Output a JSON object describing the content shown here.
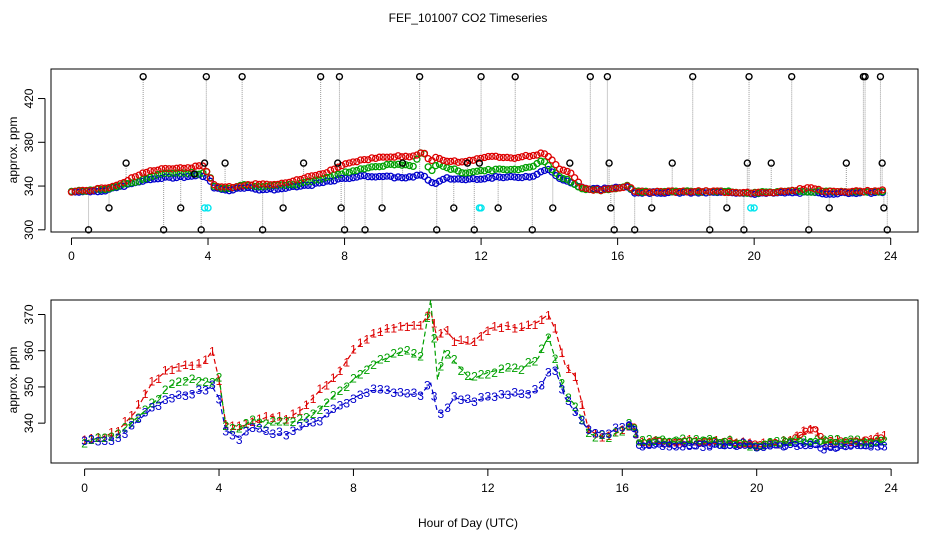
{
  "chart_data": [
    {
      "type": "scatter",
      "title": "FEF_101007  CO2 Timeseries",
      "xlabel": "",
      "ylabel": "approx. ppm",
      "xlim": [
        -0.6,
        24.8
      ],
      "ylim": [
        298,
        447
      ],
      "xticks": [
        0,
        4,
        8,
        12,
        16,
        20,
        24
      ],
      "xtick_labels": [
        "0",
        "4",
        "8",
        "12",
        "16",
        "20",
        "24"
      ],
      "yticks": [
        300,
        340,
        380,
        420
      ],
      "ytick_labels": [
        "300",
        "340",
        "380",
        "420"
      ],
      "spike_series": {
        "name": "flag extremes",
        "color": "#000000",
        "points": [
          [
            0.5,
            300
          ],
          [
            1.1,
            320
          ],
          [
            1.6,
            361
          ],
          [
            2.1,
            440
          ],
          [
            2.7,
            300
          ],
          [
            3.2,
            320
          ],
          [
            3.6,
            351
          ],
          [
            3.8,
            300
          ],
          [
            3.9,
            361
          ],
          [
            3.95,
            440
          ],
          [
            4.5,
            361
          ],
          [
            5.0,
            440
          ],
          [
            5.6,
            300
          ],
          [
            6.2,
            320
          ],
          [
            6.8,
            361
          ],
          [
            7.3,
            440
          ],
          [
            7.8,
            361
          ],
          [
            7.85,
            440
          ],
          [
            7.9,
            320
          ],
          [
            8.0,
            300
          ],
          [
            8.6,
            300
          ],
          [
            9.1,
            320
          ],
          [
            9.7,
            361
          ],
          [
            10.2,
            440
          ],
          [
            10.7,
            300
          ],
          [
            11.2,
            320
          ],
          [
            11.6,
            361
          ],
          [
            11.8,
            300
          ],
          [
            11.95,
            361
          ],
          [
            12.0,
            440
          ],
          [
            12.5,
            320
          ],
          [
            13.0,
            440
          ],
          [
            13.5,
            300
          ],
          [
            14.1,
            320
          ],
          [
            14.6,
            361
          ],
          [
            15.2,
            440
          ],
          [
            15.7,
            440
          ],
          [
            15.75,
            361
          ],
          [
            15.8,
            320
          ],
          [
            15.9,
            300
          ],
          [
            16.5,
            300
          ],
          [
            17.0,
            320
          ],
          [
            17.6,
            361
          ],
          [
            18.2,
            440
          ],
          [
            18.7,
            300
          ],
          [
            19.2,
            320
          ],
          [
            19.7,
            300
          ],
          [
            19.8,
            361
          ],
          [
            19.85,
            440
          ],
          [
            20.5,
            361
          ],
          [
            21.1,
            440
          ],
          [
            21.6,
            300
          ],
          [
            22.2,
            320
          ],
          [
            22.7,
            361
          ],
          [
            23.2,
            440
          ],
          [
            23.25,
            440
          ],
          [
            23.7,
            440
          ],
          [
            23.75,
            361
          ],
          [
            23.8,
            320
          ],
          [
            23.9,
            300
          ]
        ]
      },
      "highlight_series": {
        "name": "cyan points",
        "color": "#00e5ee",
        "points": [
          [
            3.9,
            320
          ],
          [
            4.0,
            320
          ],
          [
            11.95,
            320
          ],
          [
            12.0,
            320
          ],
          [
            19.9,
            320
          ],
          [
            20.0,
            320
          ]
        ]
      },
      "series": [
        {
          "name": "1",
          "color": "#dd0000"
        },
        {
          "name": "2",
          "color": "#00a000"
        },
        {
          "name": "3",
          "color": "#0000cc"
        }
      ]
    },
    {
      "type": "line",
      "title": "",
      "xlabel": "Hour of Day (UTC)",
      "ylabel": "approx. ppm",
      "xlim": [
        -1.0,
        24.8
      ],
      "ylim": [
        329,
        374
      ],
      "xticks": [
        0,
        4,
        8,
        12,
        16,
        20,
        24
      ],
      "xtick_labels": [
        "0",
        "4",
        "8",
        "12",
        "16",
        "20",
        "24"
      ],
      "yticks": [
        340,
        350,
        360,
        370
      ],
      "ytick_labels": [
        "340",
        "350",
        "360",
        "370"
      ],
      "series": [
        {
          "name": "1",
          "color": "#dd0000",
          "x": [
            0.0,
            0.5,
            1.0,
            1.5,
            2.0,
            2.5,
            3.0,
            3.5,
            3.8,
            4.0,
            4.2,
            4.6,
            5.0,
            5.5,
            6.0,
            6.5,
            7.0,
            7.5,
            8.0,
            8.5,
            9.0,
            9.5,
            10.0,
            10.3,
            10.5,
            10.7,
            11.0,
            11.5,
            12.0,
            12.5,
            13.0,
            13.5,
            13.8,
            14.0,
            14.3,
            14.6,
            15.0,
            15.5,
            16.0,
            16.3,
            16.5,
            17.0,
            18.0,
            19.0,
            19.8,
            20.0,
            21.0,
            21.7,
            22.0,
            23.0,
            23.8
          ],
          "values": [
            335,
            336,
            338,
            343,
            351,
            355,
            356,
            356,
            360,
            352,
            340,
            339,
            340,
            342,
            341,
            344,
            349,
            353,
            360,
            364,
            366,
            367,
            367,
            371,
            363,
            366,
            363,
            362,
            366,
            367,
            366,
            368,
            370,
            366,
            356,
            353,
            338,
            336,
            338,
            340,
            335,
            335,
            335,
            335,
            334,
            334,
            335,
            339,
            335,
            335,
            336
          ]
        },
        {
          "name": "2",
          "color": "#00a000",
          "x": [
            0.0,
            0.5,
            1.0,
            1.5,
            2.0,
            2.5,
            3.0,
            3.5,
            3.8,
            4.0,
            4.2,
            4.6,
            5.0,
            5.5,
            6.0,
            6.5,
            7.0,
            7.5,
            8.0,
            8.5,
            9.0,
            9.5,
            10.0,
            10.3,
            10.5,
            10.7,
            11.0,
            11.5,
            12.0,
            12.5,
            13.0,
            13.5,
            13.8,
            14.0,
            14.3,
            14.6,
            15.0,
            15.5,
            16.0,
            16.3,
            16.5,
            17.0,
            18.0,
            19.0,
            19.8,
            20.0,
            21.0,
            21.7,
            22.0,
            23.0,
            23.8
          ],
          "values": [
            335,
            336,
            337,
            341,
            345,
            350,
            352,
            352,
            351,
            353,
            339,
            338,
            341,
            340,
            340,
            341,
            344,
            348,
            352,
            356,
            358,
            360,
            358,
            374,
            352,
            360,
            357,
            352,
            354,
            355,
            355,
            358,
            364,
            358,
            348,
            345,
            337,
            336,
            338,
            340,
            335,
            335,
            335,
            335,
            334,
            334,
            335,
            335,
            335,
            335,
            335
          ]
        },
        {
          "name": "3",
          "color": "#0000cc",
          "x": [
            0.0,
            0.5,
            1.0,
            1.5,
            2.0,
            2.5,
            3.0,
            3.5,
            3.8,
            4.0,
            4.2,
            4.6,
            5.0,
            5.5,
            6.0,
            6.5,
            7.0,
            7.5,
            8.0,
            8.5,
            9.0,
            9.5,
            10.0,
            10.3,
            10.5,
            10.7,
            11.0,
            11.5,
            12.0,
            12.5,
            13.0,
            13.5,
            13.8,
            14.0,
            14.3,
            14.6,
            15.0,
            15.5,
            16.0,
            16.3,
            16.5,
            17.0,
            18.0,
            19.0,
            19.8,
            20.0,
            21.0,
            21.7,
            22.0,
            23.0,
            23.8
          ],
          "values": [
            335,
            335,
            336,
            340,
            344,
            347,
            348,
            349,
            350,
            347,
            338,
            336,
            339,
            337,
            337,
            339,
            341,
            344,
            347,
            349,
            349,
            348,
            348,
            351,
            343,
            343,
            347,
            346,
            347,
            348,
            348,
            349,
            354,
            355,
            347,
            343,
            338,
            337,
            339,
            340,
            334,
            334,
            334,
            334,
            334,
            333,
            334,
            334,
            333,
            334,
            334
          ]
        }
      ]
    }
  ]
}
